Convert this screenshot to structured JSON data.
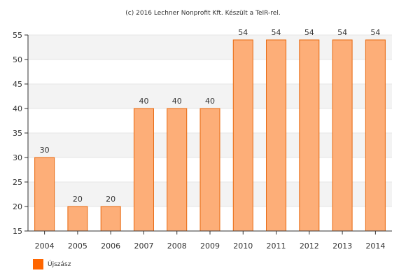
{
  "credit": "(c) 2016 Lechner Nonprofit Kft. Készült a TeIR-rel.",
  "chart_data": {
    "type": "bar",
    "title": "",
    "xlabel": "",
    "ylabel": "",
    "categories": [
      "2004",
      "2005",
      "2006",
      "2007",
      "2008",
      "2009",
      "2010",
      "2011",
      "2012",
      "2013",
      "2014"
    ],
    "series": [
      {
        "name": "Újszász",
        "values": [
          30,
          20,
          20,
          40,
          40,
          40,
          54,
          54,
          54,
          54,
          54
        ],
        "fill": "#fdae78",
        "stroke": "#e8680e"
      }
    ],
    "ylim": [
      15,
      55
    ],
    "yticks": [
      15,
      20,
      25,
      30,
      35,
      40,
      45,
      50,
      55
    ],
    "grid": true,
    "band_color": "#f3f3f3",
    "legend_position": "bottom-left",
    "legend_swatch_color": "#ff6600"
  }
}
